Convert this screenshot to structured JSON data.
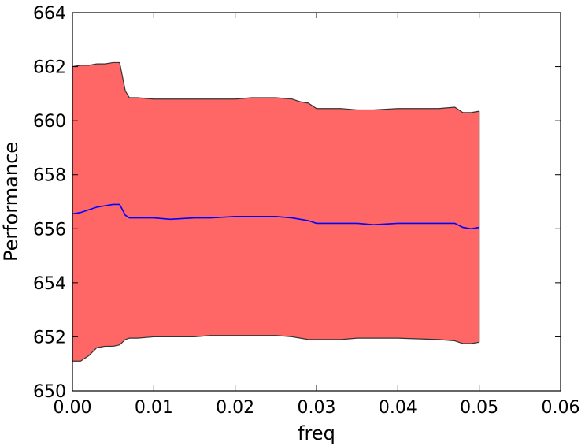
{
  "chart_data": {
    "type": "area",
    "title": "",
    "xlabel": "freq",
    "ylabel": "Performance",
    "xlim": [
      0.0,
      0.06
    ],
    "ylim": [
      650,
      664
    ],
    "xticks": [
      "0.00",
      "0.01",
      "0.02",
      "0.03",
      "0.04",
      "0.05",
      "0.06"
    ],
    "yticks": [
      "650",
      "652",
      "654",
      "656",
      "658",
      "660",
      "662",
      "664"
    ],
    "grid": false,
    "x": [
      0.0,
      0.001,
      0.002,
      0.003,
      0.004,
      0.005,
      0.0058,
      0.0065,
      0.007,
      0.008,
      0.01,
      0.012,
      0.015,
      0.017,
      0.02,
      0.022,
      0.025,
      0.027,
      0.028,
      0.029,
      0.03,
      0.031,
      0.033,
      0.035,
      0.037,
      0.04,
      0.045,
      0.047,
      0.048,
      0.049,
      0.05
    ],
    "upper": [
      662.0,
      662.05,
      662.05,
      662.1,
      662.1,
      662.15,
      662.15,
      661.1,
      660.85,
      660.85,
      660.8,
      660.8,
      660.8,
      660.8,
      660.8,
      660.85,
      660.85,
      660.8,
      660.7,
      660.65,
      660.45,
      660.45,
      660.45,
      660.4,
      660.4,
      660.45,
      660.45,
      660.5,
      660.3,
      660.3,
      660.35
    ],
    "mean": [
      656.55,
      656.6,
      656.7,
      656.8,
      656.85,
      656.9,
      656.9,
      656.5,
      656.4,
      656.4,
      656.4,
      656.35,
      656.4,
      656.4,
      656.45,
      656.45,
      656.45,
      656.4,
      656.35,
      656.3,
      656.2,
      656.2,
      656.2,
      656.2,
      656.15,
      656.2,
      656.2,
      656.2,
      656.05,
      656.0,
      656.05
    ],
    "lower": [
      651.1,
      651.1,
      651.3,
      651.6,
      651.65,
      651.65,
      651.7,
      651.9,
      651.95,
      651.95,
      652.0,
      652.0,
      652.0,
      652.05,
      652.05,
      652.05,
      652.05,
      652.0,
      651.95,
      651.9,
      651.9,
      651.9,
      651.9,
      651.95,
      651.95,
      651.95,
      651.9,
      651.85,
      651.75,
      651.75,
      651.8
    ],
    "colors": {
      "band_fill": "#ff6666",
      "band_edge": "#333333",
      "mean_line": "#0000ff"
    }
  }
}
